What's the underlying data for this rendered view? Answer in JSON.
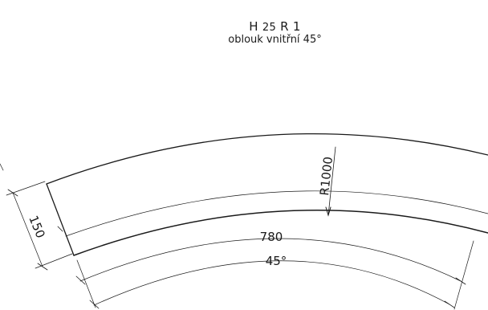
{
  "drawing": {
    "title_code": "H",
    "title_height": "25",
    "title_radius": "R 1",
    "subtitle": "oblouk vnitřní 45°"
  },
  "dimensions": {
    "radius_label": "R1000",
    "width_label": "150",
    "arc_length_label": "780",
    "angle_label": "45°"
  },
  "style": {
    "line_color": "#1a1a1a",
    "background": "#ffffff"
  }
}
